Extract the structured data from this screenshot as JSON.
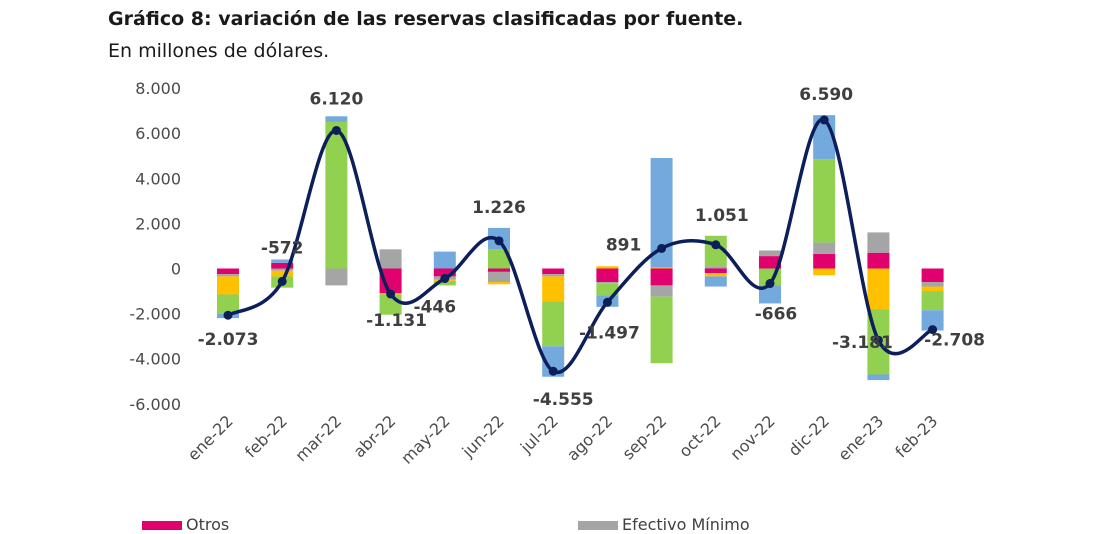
{
  "colors": {
    "Otros": "#E0006E",
    "Efectivo Mínimo": "#A5A5A5",
    "Otros2": "#FFC000",
    "Verde": "#92D050",
    "Azul": "#74A9DE",
    "line": "#0C1F5A"
  },
  "chart_data": {
    "type": "bar",
    "title": "Gráfico 8: variación de las reservas clasificadas por fuente.",
    "subtitle": "En millones de dólares.",
    "categories": [
      "ene-22",
      "feb-22",
      "mar-22",
      "abr-22",
      "may-22",
      "jun-22",
      "jul-22",
      "ago-22",
      "sep-22",
      "oct-22",
      "nov-22",
      "dic-22",
      "ene-23",
      "feb-23"
    ],
    "y_ticks": [
      "8.000",
      "6.000",
      "4.000",
      "2.000",
      "0",
      "-2.000",
      "-4.000",
      "-6.000"
    ],
    "ylim": [
      -6000,
      8000
    ],
    "grid": false,
    "legend_position": "bottom",
    "series": [
      {
        "name": "Otros",
        "color_key": "Otros",
        "values": [
          -250,
          250,
          0,
          -1100,
          -350,
          -150,
          -250,
          -600,
          -750,
          -200,
          550,
          650,
          700,
          -600
        ]
      },
      {
        "name": "Efectivo Mínimo",
        "color_key": "Efectivo Mínimo",
        "values": [
          -100,
          -100,
          -750,
          850,
          -150,
          -450,
          -100,
          -50,
          -500,
          100,
          250,
          500,
          900,
          -200
        ]
      },
      {
        "color_key": "Otros2",
        "values": [
          -800,
          -250,
          0,
          -50,
          -50,
          -100,
          -1100,
          100,
          50,
          -150,
          0,
          -300,
          -1800,
          -200
        ]
      },
      {
        "color_key": "Verde",
        "values": [
          -850,
          -500,
          6500,
          -900,
          -200,
          850,
          -2000,
          -550,
          -2950,
          1350,
          -750,
          3700,
          -2900,
          -850
        ]
      },
      {
        "color_key": "Azul",
        "values": [
          -200,
          150,
          250,
          0,
          750,
          950,
          -1350,
          -500,
          4850,
          -450,
          -800,
          1950,
          -250,
          -900
        ]
      }
    ],
    "line": {
      "values": [
        -2073,
        -572,
        6120,
        -1131,
        -446,
        1226,
        -4555,
        -1497,
        891,
        1051,
        -666,
        6590,
        -3181,
        -2708
      ]
    },
    "data_labels": [
      "-2.073",
      "-572",
      "6.120",
      "-1.131",
      "-446",
      "1.226",
      "-4.555",
      "-1.497",
      "891",
      "1.051",
      "-666",
      "6.590",
      "-3.181",
      "-2.708"
    ],
    "legend": [
      "Otros",
      "Efectivo Mínimo"
    ]
  }
}
